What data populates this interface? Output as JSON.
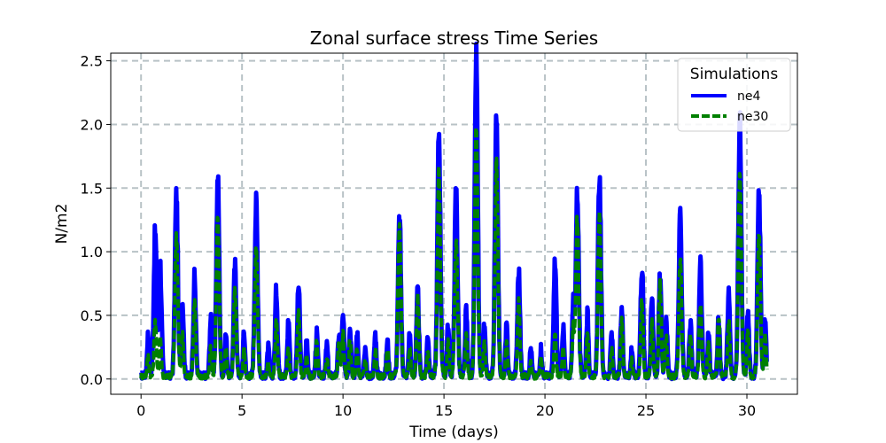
{
  "chart_data": {
    "type": "line",
    "title": "Zonal surface stress Time Series",
    "xlabel": "Time (days)",
    "ylabel": "N/m2",
    "xlim": [
      -1.5,
      32.5
    ],
    "ylim": [
      -0.12,
      2.56
    ],
    "xticks": [
      0,
      5,
      10,
      15,
      20,
      25,
      30
    ],
    "xtick_labels": [
      "0",
      "5",
      "10",
      "15",
      "20",
      "25",
      "30"
    ],
    "yticks": [
      0.0,
      0.5,
      1.0,
      1.5,
      2.0,
      2.5
    ],
    "ytick_labels": [
      "0.0",
      "0.5",
      "1.0",
      "1.5",
      "2.0",
      "2.5"
    ],
    "grid": true,
    "legend": {
      "title": "Simulations",
      "position": "top-right"
    },
    "series": [
      {
        "name": "ne4",
        "color": "#0000ff",
        "style": "solid",
        "peaks": [
          [
            0.35,
            0.3
          ],
          [
            0.7,
            1.05
          ],
          [
            0.95,
            0.8
          ],
          [
            1.75,
            1.35
          ],
          [
            2.05,
            0.55
          ],
          [
            2.65,
            0.7
          ],
          [
            3.45,
            0.4
          ],
          [
            3.8,
            1.48
          ],
          [
            4.2,
            0.3
          ],
          [
            4.65,
            0.78
          ],
          [
            5.1,
            0.3
          ],
          [
            5.7,
            1.28
          ],
          [
            6.3,
            0.2
          ],
          [
            6.7,
            0.62
          ],
          [
            7.3,
            0.4
          ],
          [
            7.8,
            0.65
          ],
          [
            8.2,
            0.25
          ],
          [
            8.7,
            0.3
          ],
          [
            9.2,
            0.22
          ],
          [
            9.8,
            0.3
          ],
          [
            10.0,
            0.42
          ],
          [
            10.35,
            0.35
          ],
          [
            10.7,
            0.3
          ],
          [
            11.1,
            0.18
          ],
          [
            11.6,
            0.3
          ],
          [
            12.2,
            0.25
          ],
          [
            12.8,
            1.15
          ],
          [
            13.3,
            0.3
          ],
          [
            13.7,
            0.6
          ],
          [
            14.2,
            0.3
          ],
          [
            14.75,
            1.85
          ],
          [
            15.2,
            0.35
          ],
          [
            15.6,
            1.4
          ],
          [
            16.1,
            0.45
          ],
          [
            16.6,
            2.45
          ],
          [
            17.0,
            0.35
          ],
          [
            17.6,
            2.0
          ],
          [
            18.1,
            0.35
          ],
          [
            18.7,
            0.75
          ],
          [
            19.3,
            0.2
          ],
          [
            19.8,
            0.2
          ],
          [
            20.5,
            0.82
          ],
          [
            20.9,
            0.35
          ],
          [
            21.4,
            0.5
          ],
          [
            21.6,
            1.38
          ],
          [
            22.1,
            0.45
          ],
          [
            22.7,
            1.5
          ],
          [
            23.3,
            0.3
          ],
          [
            23.8,
            0.48
          ],
          [
            24.3,
            0.2
          ],
          [
            24.8,
            0.8
          ],
          [
            25.3,
            0.55
          ],
          [
            25.7,
            0.7
          ],
          [
            26.0,
            0.45
          ],
          [
            26.7,
            1.15
          ],
          [
            27.2,
            0.4
          ],
          [
            27.7,
            0.8
          ],
          [
            28.1,
            0.3
          ],
          [
            28.6,
            0.4
          ],
          [
            29.1,
            0.6
          ],
          [
            29.65,
            1.92
          ],
          [
            30.05,
            0.45
          ],
          [
            30.6,
            1.35
          ],
          [
            30.9,
            0.4
          ]
        ]
      },
      {
        "name": "ne30",
        "color": "#008000",
        "style": "dashed",
        "peaks": [
          [
            0.35,
            0.15
          ],
          [
            0.7,
            0.42
          ],
          [
            0.95,
            0.3
          ],
          [
            1.75,
            1.07
          ],
          [
            2.05,
            0.3
          ],
          [
            2.65,
            0.55
          ],
          [
            3.45,
            0.2
          ],
          [
            3.8,
            1.2
          ],
          [
            4.2,
            0.2
          ],
          [
            4.65,
            0.68
          ],
          [
            5.1,
            0.2
          ],
          [
            5.7,
            0.95
          ],
          [
            6.3,
            0.1
          ],
          [
            6.7,
            0.4
          ],
          [
            7.3,
            0.2
          ],
          [
            7.8,
            0.48
          ],
          [
            8.2,
            0.15
          ],
          [
            8.7,
            0.25
          ],
          [
            9.2,
            0.15
          ],
          [
            9.8,
            0.25
          ],
          [
            10.0,
            0.32
          ],
          [
            10.35,
            0.28
          ],
          [
            10.7,
            0.2
          ],
          [
            11.1,
            0.12
          ],
          [
            11.6,
            0.2
          ],
          [
            12.2,
            0.2
          ],
          [
            12.8,
            1.15
          ],
          [
            13.3,
            0.2
          ],
          [
            13.7,
            0.58
          ],
          [
            14.2,
            0.2
          ],
          [
            14.75,
            1.55
          ],
          [
            15.2,
            0.25
          ],
          [
            15.6,
            1.02
          ],
          [
            16.1,
            0.3
          ],
          [
            16.6,
            1.9
          ],
          [
            17.0,
            0.25
          ],
          [
            17.6,
            1.6
          ],
          [
            18.1,
            0.25
          ],
          [
            18.7,
            0.55
          ],
          [
            19.3,
            0.1
          ],
          [
            19.8,
            0.12
          ],
          [
            20.5,
            0.3
          ],
          [
            20.9,
            0.2
          ],
          [
            21.4,
            0.35
          ],
          [
            21.6,
            1.18
          ],
          [
            22.1,
            0.3
          ],
          [
            22.7,
            1.2
          ],
          [
            23.3,
            0.2
          ],
          [
            23.8,
            0.42
          ],
          [
            24.3,
            0.12
          ],
          [
            24.8,
            0.55
          ],
          [
            25.3,
            0.4
          ],
          [
            25.7,
            0.68
          ],
          [
            26.0,
            0.3
          ],
          [
            26.7,
            0.88
          ],
          [
            27.2,
            0.3
          ],
          [
            27.7,
            0.55
          ],
          [
            28.1,
            0.25
          ],
          [
            28.6,
            0.42
          ],
          [
            29.1,
            0.4
          ],
          [
            29.65,
            1.6
          ],
          [
            30.05,
            0.35
          ],
          [
            30.6,
            1.05
          ],
          [
            30.9,
            0.3
          ]
        ]
      }
    ]
  }
}
